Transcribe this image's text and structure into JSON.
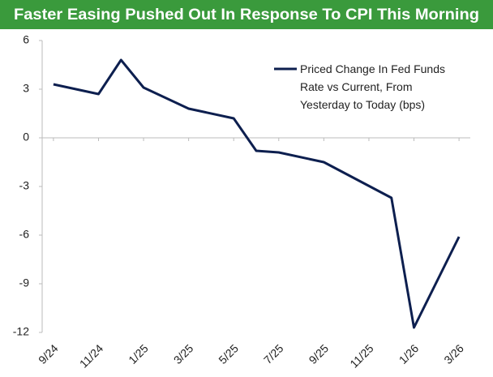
{
  "chart_data": {
    "type": "line",
    "title": "Faster Easing Pushed Out In Response To CPI This Morning",
    "x": [
      0,
      2,
      3,
      4,
      6,
      8,
      9,
      10,
      12,
      15,
      16,
      18
    ],
    "series": [
      {
        "name": "Priced Change In Fed Funds Rate vs Current, From Yesterday to Today (bps)",
        "color": "#0d1f4f",
        "values": [
          3.3,
          2.7,
          4.8,
          3.1,
          1.8,
          1.2,
          -0.8,
          -0.9,
          -1.5,
          -3.7,
          -11.7,
          -6.1
        ]
      }
    ],
    "xlim": [
      -0.5,
      18.5
    ],
    "xticks": [
      {
        "value": 0,
        "label": "9/24"
      },
      {
        "value": 2,
        "label": "11/24"
      },
      {
        "value": 4,
        "label": "1/25"
      },
      {
        "value": 6,
        "label": "3/25"
      },
      {
        "value": 8,
        "label": "5/25"
      },
      {
        "value": 10,
        "label": "7/25"
      },
      {
        "value": 12,
        "label": "9/25"
      },
      {
        "value": 14,
        "label": "11/25"
      },
      {
        "value": 16,
        "label": "1/26"
      },
      {
        "value": 18,
        "label": "3/26"
      }
    ],
    "ylim": [
      -12,
      6
    ],
    "yticks": [
      -12,
      -9,
      -6,
      -3,
      0,
      3,
      6
    ],
    "title_color": "#3a9a3c",
    "grid": false
  }
}
